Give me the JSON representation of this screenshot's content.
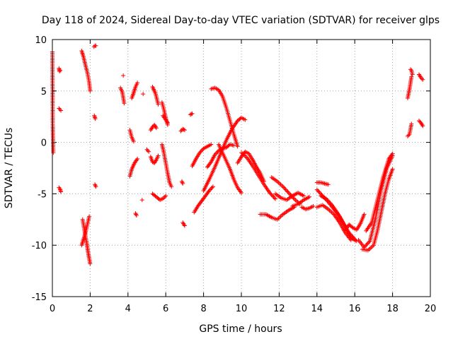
{
  "chart_data": {
    "type": "scatter",
    "title": "Day 118 of 2024, Sidereal Day-to-day VTEC variation (SDTVAR) for receiver glps",
    "xlabel": "GPS time / hours",
    "ylabel": "SDTVAR / TECUs",
    "xlim": [
      0,
      20
    ],
    "ylim": [
      -15,
      10
    ],
    "xticks": [
      0,
      2,
      4,
      6,
      8,
      10,
      12,
      14,
      16,
      18,
      20
    ],
    "yticks": [
      -15,
      -10,
      -5,
      0,
      5,
      10
    ],
    "grid": true,
    "marker": "+",
    "color": "#ff0000",
    "segments": [
      {
        "x": [
          0.0,
          0.02,
          0.05
        ],
        "y": [
          8.8,
          1.6,
          -1.0
        ]
      },
      {
        "x": [
          0.35,
          0.38,
          0.42
        ],
        "y": [
          7.2,
          6.9,
          7.0
        ]
      },
      {
        "x": [
          0.35,
          0.4,
          0.45
        ],
        "y": [
          3.3,
          3.2,
          3.1
        ]
      },
      {
        "x": [
          0.35,
          0.4,
          0.45
        ],
        "y": [
          -4.4,
          -4.5,
          -4.8
        ]
      },
      {
        "x": [
          1.55,
          1.65,
          1.75,
          1.85,
          1.95,
          2.0
        ],
        "y": [
          8.9,
          8.3,
          7.5,
          6.8,
          5.8,
          5.0
        ]
      },
      {
        "x": [
          1.6,
          1.7,
          1.8,
          1.85,
          1.9,
          1.95,
          2.0
        ],
        "y": [
          -7.5,
          -8.6,
          -9.6,
          -10.2,
          -10.8,
          -11.3,
          -11.8
        ]
      },
      {
        "x": [
          1.55,
          1.65,
          1.75,
          1.85,
          1.95
        ],
        "y": [
          -10.0,
          -9.4,
          -8.8,
          -8.0,
          -7.2
        ]
      },
      {
        "x": [
          2.2,
          2.25,
          2.3
        ],
        "y": [
          9.3,
          9.4,
          9.4
        ]
      },
      {
        "x": [
          2.22,
          2.27
        ],
        "y": [
          2.6,
          2.3
        ]
      },
      {
        "x": [
          2.25,
          2.3
        ],
        "y": [
          -4.1,
          -4.3
        ]
      },
      {
        "x": [
          3.6,
          3.7,
          3.8
        ],
        "y": [
          5.3,
          4.9,
          3.8
        ]
      },
      {
        "x": [
          3.75
        ],
        "y": [
          6.5
        ]
      },
      {
        "x": [
          4.1,
          4.2,
          4.3
        ],
        "y": [
          1.2,
          0.5,
          0.1
        ]
      },
      {
        "x": [
          4.1,
          4.2,
          4.35,
          4.5
        ],
        "y": [
          -3.3,
          -2.6,
          -2.0,
          -1.6
        ]
      },
      {
        "x": [
          4.2,
          4.3,
          4.4,
          4.5
        ],
        "y": [
          4.3,
          4.8,
          5.4,
          5.8
        ]
      },
      {
        "x": [
          4.4,
          4.45
        ],
        "y": [
          -6.9,
          -7.1
        ]
      },
      {
        "x": [
          4.8
        ],
        "y": [
          4.7
        ]
      },
      {
        "x": [
          4.75
        ],
        "y": [
          -5.6
        ]
      },
      {
        "x": [
          5.0,
          5.1
        ],
        "y": [
          -0.7,
          -0.9
        ]
      },
      {
        "x": [
          5.2,
          5.3,
          5.4,
          5.5
        ],
        "y": [
          1.2,
          1.5,
          1.7,
          1.4
        ]
      },
      {
        "x": [
          5.2,
          5.3,
          5.4,
          5.5,
          5.6
        ],
        "y": [
          -1.4,
          -1.9,
          -2.0,
          -1.7,
          -1.3
        ]
      },
      {
        "x": [
          5.3,
          5.45,
          5.6
        ],
        "y": [
          5.4,
          4.8,
          3.7
        ]
      },
      {
        "x": [
          5.3,
          5.5,
          5.7,
          5.9,
          6.0
        ],
        "y": [
          -5.0,
          -5.3,
          -5.6,
          -5.4,
          -5.2
        ]
      },
      {
        "x": [
          5.8,
          5.9,
          6.0,
          6.1,
          6.2,
          6.3
        ],
        "y": [
          -0.2,
          -1.0,
          -2.0,
          -3.0,
          -3.9,
          -4.3
        ]
      },
      {
        "x": [
          5.8,
          5.9,
          6.0,
          6.1
        ],
        "y": [
          3.9,
          3.2,
          2.4,
          1.7
        ]
      },
      {
        "x": [
          5.85,
          6.0,
          6.1
        ],
        "y": [
          2.6,
          2.2,
          1.9
        ]
      },
      {
        "x": [
          6.8,
          6.9,
          7.0
        ],
        "y": [
          1.1,
          1.3,
          1.2
        ]
      },
      {
        "x": [
          6.85,
          6.9
        ],
        "y": [
          -3.8,
          -4.0
        ]
      },
      {
        "x": [
          6.9,
          7.0
        ],
        "y": [
          -7.8,
          -8.1
        ]
      },
      {
        "x": [
          7.3,
          7.4
        ],
        "y": [
          2.7,
          2.8
        ]
      },
      {
        "x": [
          7.4,
          7.6,
          7.8,
          8.0,
          8.2,
          8.4
        ],
        "y": [
          -2.3,
          -1.6,
          -1.0,
          -0.6,
          -0.4,
          -0.2
        ]
      },
      {
        "x": [
          7.5,
          7.7,
          7.9,
          8.1,
          8.3,
          8.5
        ],
        "y": [
          -6.8,
          -6.2,
          -5.7,
          -5.2,
          -4.7,
          -4.3
        ]
      },
      {
        "x": [
          8.0,
          8.3,
          8.6,
          8.9,
          9.2,
          9.5,
          9.8,
          10.0,
          10.2
        ],
        "y": [
          -4.7,
          -3.6,
          -2.4,
          -1.1,
          0.2,
          1.3,
          2.1,
          2.4,
          2.2
        ]
      },
      {
        "x": [
          8.2,
          8.4,
          8.6,
          8.8,
          9.0,
          9.2,
          9.4,
          9.6
        ],
        "y": [
          -2.4,
          -1.9,
          -1.2,
          -0.8,
          -0.6,
          -0.5,
          -0.2,
          -0.3
        ]
      },
      {
        "x": [
          8.4,
          8.6,
          8.8,
          9.0,
          9.2,
          9.4,
          9.6,
          9.8
        ],
        "y": [
          5.2,
          5.3,
          5.1,
          4.5,
          3.4,
          2.1,
          0.8,
          -0.4
        ]
      },
      {
        "x": [
          8.8,
          9.0,
          9.2,
          9.4,
          9.6,
          9.8,
          10.0
        ],
        "y": [
          -0.2,
          -1.0,
          -1.8,
          -2.6,
          -3.6,
          -4.4,
          -4.9
        ]
      },
      {
        "x": [
          9.8,
          10.0,
          10.2,
          10.4,
          10.6,
          10.8,
          11.0,
          11.2
        ],
        "y": [
          -2.0,
          -1.4,
          -0.9,
          -1.1,
          -1.7,
          -2.4,
          -3.0,
          -3.8
        ]
      },
      {
        "x": [
          10.0,
          10.3,
          10.6,
          10.9,
          11.2,
          11.5,
          11.8
        ],
        "y": [
          -1.0,
          -1.5,
          -2.3,
          -3.2,
          -4.1,
          -4.9,
          -5.5
        ]
      },
      {
        "x": [
          11.0,
          11.3,
          11.6,
          11.9,
          12.2,
          12.5,
          12.8
        ],
        "y": [
          -7.0,
          -7.0,
          -7.3,
          -7.5,
          -7.0,
          -6.6,
          -6.3
        ]
      },
      {
        "x": [
          11.6,
          11.9,
          12.2,
          12.5,
          12.8,
          13.1
        ],
        "y": [
          -3.4,
          -3.8,
          -4.3,
          -4.9,
          -5.5,
          -6.0
        ]
      },
      {
        "x": [
          11.8,
          12.1,
          12.4,
          12.7,
          13.0,
          13.3
        ],
        "y": [
          -5.0,
          -5.4,
          -5.6,
          -5.2,
          -4.9,
          -5.2
        ]
      },
      {
        "x": [
          12.7,
          13.0,
          13.3,
          13.6
        ],
        "y": [
          -6.2,
          -6.0,
          -5.6,
          -5.3
        ]
      },
      {
        "x": [
          13.2,
          13.4,
          13.6,
          13.8
        ],
        "y": [
          -6.3,
          -6.5,
          -6.4,
          -6.2
        ]
      },
      {
        "x": [
          14.0,
          14.2,
          14.4,
          14.6
        ],
        "y": [
          -3.9,
          -3.9,
          -4.0,
          -4.1
        ]
      },
      {
        "x": [
          14.0,
          14.3,
          14.6,
          14.9,
          15.2,
          15.5,
          15.8,
          16.1
        ],
        "y": [
          -4.6,
          -5.2,
          -5.8,
          -6.5,
          -7.2,
          -8.2,
          -9.3,
          -9.6
        ]
      },
      {
        "x": [
          14.0,
          14.3,
          14.6,
          14.9,
          15.2,
          15.5,
          15.8
        ],
        "y": [
          -6.3,
          -6.1,
          -6.5,
          -7.0,
          -7.8,
          -8.8,
          -9.5
        ]
      },
      {
        "x": [
          14.2,
          14.5,
          14.8,
          15.1,
          15.4,
          15.7,
          16.0
        ],
        "y": [
          -5.2,
          -5.5,
          -6.1,
          -6.9,
          -7.9,
          -8.8,
          -9.4
        ]
      },
      {
        "x": [
          15.5,
          15.7,
          15.9,
          16.1,
          16.3,
          16.5
        ],
        "y": [
          -8.5,
          -8.0,
          -8.3,
          -8.5,
          -7.9,
          -7.0
        ]
      },
      {
        "x": [
          16.2,
          16.5,
          16.8,
          17.1,
          17.4,
          17.7,
          18.0
        ],
        "y": [
          -9.5,
          -10.2,
          -9.6,
          -7.4,
          -4.6,
          -2.5,
          -1.3
        ]
      },
      {
        "x": [
          16.4,
          16.7,
          17.0,
          17.2,
          17.4,
          17.6,
          17.8,
          18.0
        ],
        "y": [
          -10.4,
          -10.5,
          -10.0,
          -8.6,
          -6.8,
          -5.0,
          -3.6,
          -2.6
        ]
      },
      {
        "x": [
          16.6,
          16.9,
          17.2,
          17.5,
          17.8,
          18.0
        ],
        "y": [
          -8.6,
          -7.8,
          -5.6,
          -3.4,
          -1.6,
          -1.1
        ]
      },
      {
        "x": [
          18.8,
          18.9,
          19.0
        ],
        "y": [
          4.3,
          5.2,
          6.4
        ]
      },
      {
        "x": [
          18.8,
          18.9,
          19.0
        ],
        "y": [
          0.6,
          0.8,
          1.8
        ]
      },
      {
        "x": [
          18.95,
          19.0,
          19.05
        ],
        "y": [
          7.1,
          7.0,
          6.6
        ]
      },
      {
        "x": [
          19.4,
          19.5,
          19.6
        ],
        "y": [
          6.6,
          6.3,
          6.1
        ]
      },
      {
        "x": [
          19.4,
          19.5,
          19.6
        ],
        "y": [
          2.1,
          1.9,
          1.6
        ]
      }
    ]
  }
}
